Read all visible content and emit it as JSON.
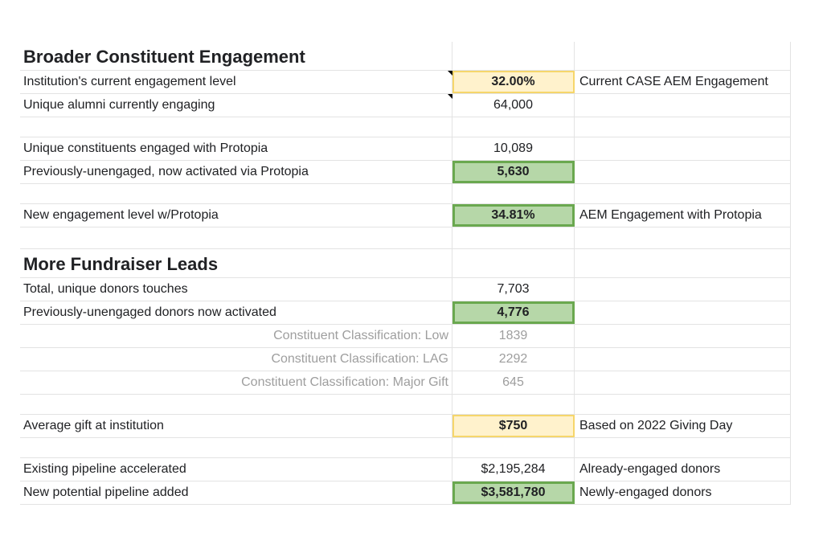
{
  "sections": {
    "engagement_title": "Broader Constituent Engagement",
    "fundraiser_title": "More Fundraiser Leads"
  },
  "rows": {
    "current_level": {
      "label": "Institution's current engagement level",
      "value": "32.00%",
      "note": "Current CASE AEM Engagement"
    },
    "unique_alumni": {
      "label": "Unique alumni currently engaging",
      "value": "64,000"
    },
    "constituents_engaged": {
      "label": "Unique constituents engaged with Protopia",
      "value": "10,089"
    },
    "previously_unengaged": {
      "label": "Previously-unengaged, now activated via Protopia",
      "value": "5,630"
    },
    "new_level": {
      "label": "New engagement level w/Protopia",
      "value": "34.81%",
      "note": "AEM Engagement with Protopia"
    },
    "donor_touches": {
      "label": "Total, unique donors touches",
      "value": "7,703"
    },
    "donors_activated": {
      "label": "Previously-unengaged donors now activated",
      "value": "4,776"
    },
    "class_low": {
      "label": "Constituent Classification: Low",
      "value": "1839"
    },
    "class_lag": {
      "label": "Constituent Classification: LAG",
      "value": "2292"
    },
    "class_major": {
      "label": "Constituent Classification: Major Gift",
      "value": "645"
    },
    "average_gift": {
      "label": "Average gift at institution",
      "value": "$750",
      "note": "Based on 2022 Giving Day"
    },
    "existing_pipeline": {
      "label": "Existing pipeline accelerated",
      "value": "$2,195,284",
      "note": "Already-engaged donors"
    },
    "new_pipeline": {
      "label": "New potential pipeline added",
      "value": "$3,581,780",
      "note": "Newly-engaged donors"
    }
  },
  "colors": {
    "input_fill": "#fff2cc",
    "input_border": "#f6d66b",
    "result_fill": "#b6d7a8",
    "result_border": "#6aa84f"
  }
}
